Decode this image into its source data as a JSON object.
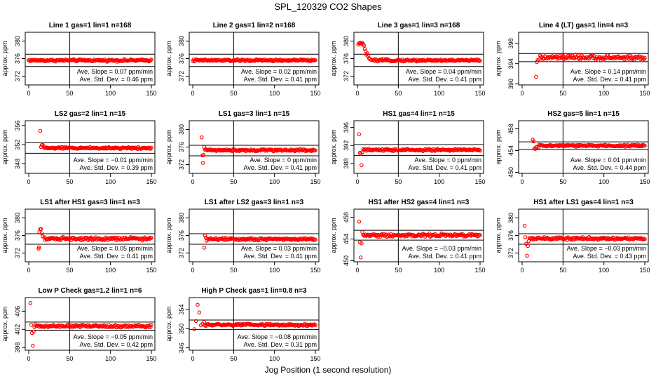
{
  "title": "SPL_120329  CO2 Shapes",
  "xlabel": "Jog Position (1 second resolution)",
  "chart_data": [
    {
      "type": "scatter",
      "title": "Line 1 gas=1 lin=1 n=168",
      "ylabel": "approx. ppm",
      "xlim": [
        0,
        150
      ],
      "xticks": [
        0,
        50,
        100,
        150
      ],
      "ylim": [
        370,
        382
      ],
      "yticks": [
        372,
        376,
        380
      ],
      "hlines": [
        377.0,
        374.2
      ],
      "level": 375.6,
      "noise": 0.12,
      "lead": [],
      "slope_text": "Ave. Slope = 0.07  ppm/min",
      "std_text": "Ave. Std. Dev. = 0.46  ppm"
    },
    {
      "type": "scatter",
      "title": "Line 2 gas=1 lin=2 n=168",
      "ylabel": "approx. ppm",
      "xlim": [
        0,
        150
      ],
      "xticks": [
        0,
        50,
        100,
        150
      ],
      "ylim": [
        370,
        382
      ],
      "yticks": [
        372,
        376,
        380
      ],
      "hlines": [
        377.0,
        374.2
      ],
      "level": 375.6,
      "noise": 0.12,
      "lead": [],
      "slope_text": "Ave. Slope = 0.02  ppm/min",
      "std_text": "Ave. Std. Dev. = 0.41  ppm"
    },
    {
      "type": "scatter",
      "title": "Line 3 gas=1 lin=3 n=168",
      "ylabel": "approx. ppm",
      "xlim": [
        0,
        150
      ],
      "xticks": [
        0,
        50,
        100,
        150
      ],
      "ylim": [
        370,
        382
      ],
      "yticks": [
        372,
        376,
        380
      ],
      "hlines": [
        377.0,
        374.2
      ],
      "level": 375.6,
      "noise": 0.12,
      "lead": [
        [
          1,
          379.2
        ],
        [
          2,
          379.5
        ],
        [
          3,
          379.6
        ],
        [
          4,
          379.5
        ],
        [
          5,
          379.4
        ],
        [
          6,
          379.6
        ],
        [
          7,
          379.3
        ],
        [
          8,
          379.0
        ],
        [
          9,
          378.2
        ],
        [
          10,
          377.7
        ],
        [
          11,
          376.9
        ],
        [
          12,
          377.2
        ],
        [
          13,
          376.6
        ],
        [
          14,
          376.1
        ],
        [
          15,
          375.9
        ],
        [
          17,
          375.7
        ],
        [
          19,
          375.6
        ]
      ],
      "slope_text": "Ave. Slope = 0.04  ppm/min",
      "std_text": "Ave. Std. Dev. = 0.41  ppm"
    },
    {
      "type": "scatter",
      "title": "Line 4 (LT) gas=1 lin=4 n=3",
      "ylabel": "approx. ppm",
      "xlim": [
        0,
        150
      ],
      "xticks": [
        0,
        50,
        100,
        150
      ],
      "ylim": [
        389.8,
        400.2
      ],
      "yticks": [
        390,
        394,
        398
      ],
      "hlines": [
        396.0,
        394.4
      ],
      "level": 395.2,
      "noise": 0.22,
      "start": 17,
      "lead": [
        [
          17,
          391.4
        ],
        [
          18,
          394.3
        ],
        [
          19,
          394.7
        ],
        [
          21,
          394.9
        ]
      ],
      "slope_text": "Ave. Slope = 0.14  ppm/min",
      "std_text": "Ave. Std. Dev. = 0.41  ppm"
    },
    {
      "type": "scatter",
      "title": "LS2 gas=2 lin=1 n=15",
      "ylabel": "approx. ppm",
      "xlim": [
        0,
        150
      ],
      "xticks": [
        0,
        50,
        100,
        150
      ],
      "ylim": [
        346,
        357
      ],
      "yticks": [
        348,
        352,
        356
      ],
      "hlines": [
        352.4,
        350.2
      ],
      "level": 351.3,
      "noise": 0.1,
      "start": 14,
      "lead": [
        [
          14,
          354.9
        ],
        [
          15,
          351.5
        ],
        [
          16,
          351.9
        ],
        [
          17,
          352.0
        ],
        [
          18,
          351.7
        ]
      ],
      "slope_text": "Ave. Slope = −0.01  ppm/min",
      "std_text": "Ave. Std. Dev. = 0.39  ppm"
    },
    {
      "type": "scatter",
      "title": "LS1 gas=3 lin=1 n=15",
      "ylabel": "approx. ppm",
      "xlim": [
        0,
        150
      ],
      "xticks": [
        0,
        50,
        100,
        150
      ],
      "ylim": [
        370,
        382
      ],
      "yticks": [
        372,
        376,
        380
      ],
      "hlines": [
        376.4,
        374.0
      ],
      "level": 375.3,
      "noise": 0.12,
      "start": 11,
      "lead": [
        [
          11,
          378.2
        ],
        [
          12,
          374.1
        ],
        [
          12.5,
          372.4
        ],
        [
          13,
          374.2
        ],
        [
          14,
          376.0
        ],
        [
          15,
          375.4
        ],
        [
          16,
          375.5
        ]
      ],
      "slope_text": "Ave. Slope = 0  ppm/min",
      "std_text": "Ave. Std. Dev. = 0.41  ppm"
    },
    {
      "type": "scatter",
      "title": "HS1 gas=4 lin=1 n=15",
      "ylabel": "approx. ppm",
      "xlim": [
        0,
        150
      ],
      "xticks": [
        0,
        50,
        100,
        150
      ],
      "ylim": [
        385.8,
        397.5
      ],
      "yticks": [
        388,
        392,
        396
      ],
      "hlines": [
        392.2,
        389.8
      ],
      "level": 391.0,
      "noise": 0.12,
      "start": 2,
      "lead": [
        [
          2,
          394.5
        ],
        [
          3,
          390.4
        ],
        [
          4,
          390.2
        ],
        [
          5,
          387.6
        ],
        [
          6,
          390.5
        ],
        [
          7,
          391.2
        ],
        [
          8,
          391.0
        ]
      ],
      "slope_text": "Ave. Slope = 0  ppm/min",
      "std_text": "Ave. Std. Dev. = 0.41  ppm"
    },
    {
      "type": "scatter",
      "title": "HS2 gas=5 lin=1 n=15",
      "ylabel": "approx. ppm",
      "xlim": [
        0,
        150
      ],
      "xticks": [
        0,
        50,
        100,
        150
      ],
      "ylim": [
        449.8,
        459.5
      ],
      "yticks": [
        450,
        454,
        458
      ],
      "hlines": [
        455.6,
        454.2
      ],
      "level": 454.9,
      "noise": 0.1,
      "start": 13,
      "lead": [
        [
          13,
          456.0
        ],
        [
          14,
          455.7
        ],
        [
          15,
          454.4
        ],
        [
          16,
          454.3
        ],
        [
          17,
          454.6
        ],
        [
          18,
          454.7
        ],
        [
          20,
          454.6
        ]
      ],
      "slope_text": "Ave. Slope = 0.01  ppm/min",
      "std_text": "Ave. Std. Dev. = 0.44  ppm"
    },
    {
      "type": "scatter",
      "title": "LS1 after HS1 gas=3 lin=1 n=3",
      "ylabel": "approx. ppm",
      "xlim": [
        0,
        150
      ],
      "xticks": [
        0,
        50,
        100,
        150
      ],
      "ylim": [
        370,
        382
      ],
      "yticks": [
        372,
        376,
        380
      ],
      "hlines": [
        376.4,
        374.0
      ],
      "level": 375.3,
      "noise": 0.18,
      "start": 12,
      "lead": [
        [
          12,
          373.0
        ],
        [
          12.5,
          373.3
        ],
        [
          13,
          376.8
        ],
        [
          14,
          377.4
        ],
        [
          15,
          377.5
        ],
        [
          16,
          376.5
        ],
        [
          17,
          375.8
        ],
        [
          19,
          375.6
        ]
      ],
      "slope_text": "Ave. Slope = 0.05  ppm/min",
      "std_text": "Ave. Std. Dev. = 0.41  ppm"
    },
    {
      "type": "scatter",
      "title": "LS1 after LS2 gas=3 lin=1 n=3",
      "ylabel": "approx. ppm",
      "xlim": [
        0,
        150
      ],
      "xticks": [
        0,
        50,
        100,
        150
      ],
      "ylim": [
        370,
        382
      ],
      "yticks": [
        372,
        376,
        380
      ],
      "hlines": [
        376.4,
        374.0
      ],
      "level": 375.2,
      "noise": 0.15,
      "start": 14,
      "lead": [
        [
          14,
          373.2
        ],
        [
          15,
          376.0
        ],
        [
          16,
          375.5
        ],
        [
          17,
          374.8
        ],
        [
          18,
          375.3
        ]
      ],
      "slope_text": "Ave. Slope = 0.03  ppm/min",
      "std_text": "Ave. Std. Dev. = 0.41  ppm"
    },
    {
      "type": "scatter",
      "title": "HS1 after HS2 gas=4 lin=1 n=3",
      "ylabel": "approx. ppm",
      "xlim": [
        0,
        150
      ],
      "xticks": [
        0,
        50,
        100,
        150
      ],
      "ylim": [
        449.8,
        459.5
      ],
      "yticks": [
        450,
        454,
        458
      ],
      "hlines": [
        455.6,
        453.8
      ],
      "level": 454.7,
      "noise": 0.15,
      "start": 2,
      "lead": [
        [
          2,
          457.2
        ],
        [
          3,
          453.4
        ],
        [
          4,
          450.6
        ],
        [
          5,
          453.2
        ],
        [
          6,
          455.3
        ],
        [
          7,
          454.8
        ]
      ],
      "slope_text": "Ave. Slope = −0.03  ppm/min",
      "std_text": "Ave. Std. Dev. = 0.41  ppm"
    },
    {
      "type": "scatter",
      "title": "HS1 after LS1 gas=4 lin=1 n=3",
      "ylabel": "approx. ppm",
      "xlim": [
        0,
        150
      ],
      "xticks": [
        0,
        50,
        100,
        150
      ],
      "ylim": [
        370,
        382
      ],
      "yticks": [
        372,
        376,
        380
      ],
      "hlines": [
        376.4,
        374.0
      ],
      "level": 375.3,
      "noise": 0.15,
      "start": 3,
      "lead": [
        [
          3,
          378.2
        ],
        [
          4,
          375.6
        ],
        [
          5,
          374.1
        ],
        [
          6,
          371.4
        ],
        [
          7,
          373.6
        ],
        [
          8,
          374.7
        ],
        [
          9,
          375.4
        ]
      ],
      "slope_text": "Ave. Slope = −0.03  ppm/min",
      "std_text": "Ave. Std. Dev. = 0.43  ppm"
    },
    {
      "type": "scatter",
      "title": "Low P Check gas=1.2 lin=1 n=6",
      "ylabel": "approx. ppm",
      "xlim": [
        0,
        150
      ],
      "xticks": [
        0,
        50,
        100,
        150
      ],
      "ylim": [
        397.4,
        409
      ],
      "yticks": [
        398,
        402,
        406
      ],
      "hlines": [
        403.6,
        401.8
      ],
      "level": 402.7,
      "noise": 0.15,
      "start": 2,
      "lead": [
        [
          2,
          407.8
        ],
        [
          3,
          403.0
        ],
        [
          4,
          401.2
        ],
        [
          5,
          398.4
        ],
        [
          6,
          401.5
        ],
        [
          7,
          402.5
        ],
        [
          8,
          403.1
        ]
      ],
      "slope_text": "Ave. Slope = −0.05  ppm/min",
      "std_text": "Ave. Std. Dev. = 0.42  ppm"
    },
    {
      "type": "scatter",
      "title": "High P Check gas=1 lin=0.8 n=3",
      "ylabel": "approx. ppm",
      "xlim": [
        0,
        150
      ],
      "xticks": [
        0,
        50,
        100,
        150
      ],
      "ylim": [
        345.5,
        356.5
      ],
      "yticks": [
        346,
        350,
        354
      ],
      "hlines": [
        351.8,
        349.8
      ],
      "level": 350.8,
      "noise": 0.12,
      "start": 2,
      "lead": [
        [
          2,
          349.9
        ],
        [
          4,
          351.6
        ],
        [
          6,
          355.0
        ],
        [
          8,
          353.4
        ],
        [
          10,
          350.7
        ],
        [
          12,
          351.0
        ],
        [
          14,
          351.4
        ]
      ],
      "slope_text": "Ave. Slope = −0.08  ppm/min",
      "std_text": "Ave. Std. Dev. = 0.31  ppm"
    }
  ]
}
